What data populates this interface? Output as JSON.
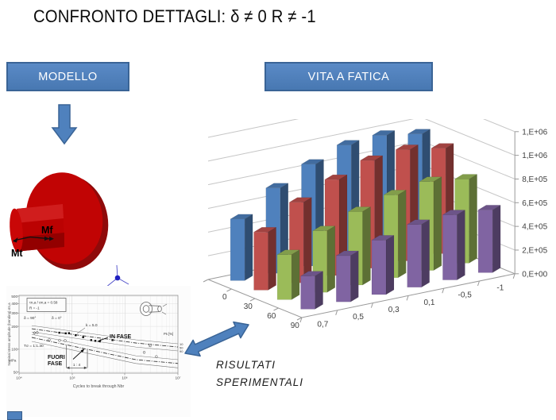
{
  "slide": {
    "title": "CONFRONTO DETTAGLI: δ ≠ 0 R ≠ -1"
  },
  "colors": {
    "accent": "#4F81BD",
    "accent_border": "#3A6496"
  },
  "header_boxes": {
    "modello": "MODELLO",
    "vita_a_fatica": "VITA A FATICA"
  },
  "model_labels": {
    "mf": "Mf",
    "mt": "Mt"
  },
  "caption": {
    "line1": "RISULTATI",
    "line2": "SPERIMENTALI"
  },
  "chart_data": [
    {
      "type": "bar",
      "projection": "3d",
      "title": "",
      "ylim": [
        0,
        1200000
      ],
      "value_axis_ticks": [
        "0,E+00",
        "2,E+05",
        "4,E+05",
        "6,E+05",
        "8,E+05",
        "1,E+06",
        "1,E+06"
      ],
      "categories": [
        "0,7",
        "0,5",
        "0,3",
        "0,1",
        "-0,5",
        "-1"
      ],
      "row_labels": [
        "0",
        "30",
        "60",
        "90"
      ],
      "series": [
        {
          "name": "0",
          "color": "#4F81BD",
          "values": [
            520000,
            720000,
            860000,
            960000,
            980000,
            930000
          ]
        },
        {
          "name": "30",
          "color": "#C0504D",
          "values": [
            490000,
            680000,
            810000,
            910000,
            940000,
            890000
          ]
        },
        {
          "name": "60",
          "color": "#9BBB59",
          "values": [
            380000,
            520000,
            620000,
            700000,
            750000,
            710000
          ]
        },
        {
          "name": "90",
          "color": "#8064A2",
          "values": [
            280000,
            390000,
            460000,
            530000,
            550000,
            530000
          ]
        }
      ],
      "grid": true,
      "legend": "none"
    },
    {
      "type": "line",
      "title": "",
      "xlabel": "Cycles to break through  Nbr",
      "ylabel": "Nominal stress amplitude (bending)  σn,a",
      "x_ticks": [
        "10⁴",
        "10⁵",
        "10⁶",
        "10⁷"
      ],
      "y_ticks": [
        500,
        400,
        300,
        200,
        100,
        50
      ],
      "y_unit": "MPa",
      "annotations": {
        "ratio_line1": "τn,a / σn,a = 0.58",
        "ratio_line2": "R = -1",
        "delta_90": "δ = 90°",
        "delta_0": "δ = 0°",
        "slope": "k = 5.0",
        "scatter": "Tσ = 1:1.30",
        "in_fase": "IN FASE",
        "fuori_fase_1": "FUORI",
        "fuori_fase_2": "FASE",
        "ratio_14": "1 : 4",
        "ps": "Ps [%]",
        "p10": "10",
        "p50": "50",
        "p90": "90"
      },
      "bands": {
        "in_fase": {
          "N": [
            17400,
            1600000,
            10000000
          ],
          "p10": [
            205,
            133,
            118
          ],
          "p50": [
            186,
            121,
            107
          ],
          "p90": [
            169,
            107,
            95
          ]
        },
        "fuori_fase": {
          "N": [
            17400,
            1600000,
            10000000
          ],
          "p10": [
            157,
            82,
            73
          ],
          "p50": [
            143,
            73,
            65
          ],
          "p90": [
            127,
            65,
            57
          ]
        }
      },
      "points": {
        "in_fase_squares": [
          [
            57500,
            165
          ],
          [
            76000,
            162
          ],
          [
            87500,
            163
          ],
          [
            117000,
            153
          ],
          [
            162000,
            144
          ],
          [
            230000,
            132
          ],
          [
            275000,
            129
          ],
          [
            580000,
            132
          ]
        ],
        "fuori_diamonds": [
          [
            19500,
            164
          ],
          [
            22000,
            166
          ]
        ],
        "fuori_circles": [
          [
            37000,
            133
          ],
          [
            58000,
            131
          ],
          [
            74000,
            130
          ],
          [
            2300000,
            91
          ],
          [
            3900000,
            80
          ]
        ],
        "special_slash_circle": [
          [
            3000000,
            113
          ]
        ]
      }
    }
  ]
}
